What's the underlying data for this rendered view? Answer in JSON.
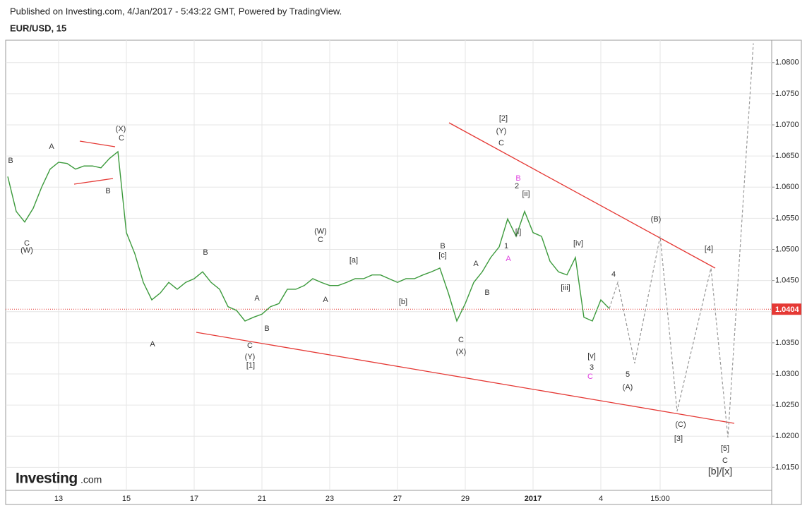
{
  "header": {
    "published": "Published on Investing.com, 4/Jan/2017 - 5:43:22 GMT, Powered by TradingView.",
    "symbol": "EUR/USD, 15"
  },
  "logo": {
    "brand": "Investing",
    "suffix": ".com"
  },
  "chart_data": {
    "type": "line",
    "categories": [
      null,
      null,
      null,
      null,
      null,
      null,
      "13",
      null,
      null,
      null,
      null,
      null,
      null,
      null,
      "15",
      null,
      null,
      null,
      null,
      null,
      null,
      null,
      "17",
      null,
      null,
      null,
      null,
      null,
      null,
      null,
      "21",
      null,
      null,
      null,
      null,
      null,
      null,
      null,
      "23",
      null,
      null,
      null,
      null,
      null,
      null,
      null,
      "27",
      null,
      null,
      null,
      null,
      null,
      null,
      null,
      "29",
      null,
      null,
      null,
      null,
      null,
      null,
      null,
      "2017",
      null,
      null,
      null,
      null,
      null,
      null,
      null,
      "4",
      null,
      null,
      null,
      null,
      null,
      null,
      "15:00",
      null,
      null,
      null,
      null,
      null,
      null,
      null,
      null,
      null,
      null,
      null
    ],
    "series": [
      {
        "color": "#3c9a3c",
        "values": [
          1.0617,
          1.0561,
          1.0544,
          1.0566,
          1.06,
          1.0629,
          1.064,
          1.0638,
          1.0629,
          1.0634,
          1.0634,
          1.0631,
          1.0646,
          1.0657,
          1.0527,
          1.0493,
          1.0447,
          1.0419,
          1.043,
          1.0447,
          1.0436,
          1.0447,
          1.0453,
          1.0464,
          1.0447,
          1.0436,
          1.0408,
          1.0402,
          1.0385,
          1.0391,
          1.0396,
          1.0408,
          1.0413,
          1.0436,
          1.0436,
          1.0442,
          1.0453,
          1.0447,
          1.0442,
          1.0442,
          1.0447,
          1.0453,
          1.0453,
          1.0459,
          1.0459,
          1.0453,
          1.0447,
          1.0453,
          1.0453,
          1.0459,
          1.0464,
          1.047,
          1.043,
          1.0385,
          1.0413,
          1.0447,
          1.0464,
          1.0487,
          1.0504,
          1.0549,
          1.0521,
          1.0561,
          1.0527,
          1.0521,
          1.0481,
          1.0464,
          1.0459,
          1.0487,
          1.0391,
          1.0385,
          1.0419,
          1.0405,
          null,
          null,
          null,
          null,
          null,
          null,
          null,
          null,
          null,
          null,
          null,
          null,
          null,
          null,
          null,
          null,
          null
        ]
      },
      {
        "color": "#999999",
        "dashed": true,
        "values": [
          null,
          null,
          null,
          null,
          null,
          null,
          null,
          null,
          null,
          null,
          null,
          null,
          null,
          null,
          null,
          null,
          null,
          null,
          null,
          null,
          null,
          null,
          null,
          null,
          null,
          null,
          null,
          null,
          null,
          null,
          null,
          null,
          null,
          null,
          null,
          null,
          null,
          null,
          null,
          null,
          null,
          null,
          null,
          null,
          null,
          null,
          null,
          null,
          null,
          null,
          null,
          null,
          null,
          null,
          null,
          null,
          null,
          null,
          null,
          null,
          null,
          null,
          null,
          null,
          null,
          null,
          null,
          null,
          null,
          null,
          null,
          1.0405,
          1.0447,
          1.0382,
          1.0317,
          1.0385,
          1.0453,
          1.0521,
          1.0381,
          1.024,
          1.0298,
          1.0355,
          1.0413,
          1.047,
          1.0334,
          1.0198,
          1.0409,
          1.062,
          1.0831
        ]
      }
    ],
    "ylim": [
      1.0113,
      1.0836
    ],
    "yticks": [
      {
        "value": 1.015,
        "label": "1.0150"
      },
      {
        "value": 1.02,
        "label": "1.0200"
      },
      {
        "value": 1.025,
        "label": "1.0250"
      },
      {
        "value": 1.03,
        "label": "1.0300"
      },
      {
        "value": 1.035,
        "label": "1.0350"
      },
      {
        "value": 1.04,
        "label": "1.0400"
      },
      {
        "value": 1.045,
        "label": "1.0450"
      },
      {
        "value": 1.05,
        "label": "1.0500"
      },
      {
        "value": 1.055,
        "label": "1.0550"
      },
      {
        "value": 1.06,
        "label": "1.0600"
      },
      {
        "value": 1.065,
        "label": "1.0650"
      },
      {
        "value": 1.07,
        "label": "1.0700"
      },
      {
        "value": 1.075,
        "label": "1.0750"
      },
      {
        "value": 1.08,
        "label": "1.0800"
      }
    ],
    "grid": true,
    "last_price": 1.0404,
    "last_price_color": "#e53935",
    "annotations": [
      {
        "text": "B"
      },
      {
        "text": "C"
      },
      {
        "text": "(W)"
      },
      {
        "text": "A"
      },
      {
        "text": "(X)"
      },
      {
        "text": "C"
      },
      {
        "text": "B"
      },
      {
        "text": "A"
      },
      {
        "text": "B"
      },
      {
        "text": "C"
      },
      {
        "text": "(Y)"
      },
      {
        "text": "[1]"
      },
      {
        "text": "A"
      },
      {
        "text": "B"
      },
      {
        "text": "(W)"
      },
      {
        "text": "C"
      },
      {
        "text": "A"
      },
      {
        "text": "[a]"
      },
      {
        "text": "[b]"
      },
      {
        "text": "B"
      },
      {
        "text": "[c]"
      },
      {
        "text": "C"
      },
      {
        "text": "(X)"
      },
      {
        "text": "A"
      },
      {
        "text": "B"
      },
      {
        "text": "[2]"
      },
      {
        "text": "(Y)"
      },
      {
        "text": "C"
      },
      {
        "text": "B",
        "color": "#e040e0"
      },
      {
        "text": "2"
      },
      {
        "text": "[ii]"
      },
      {
        "text": "[i]"
      },
      {
        "text": "1"
      },
      {
        "text": "A",
        "color": "#e040e0"
      },
      {
        "text": "[iv]"
      },
      {
        "text": "[iii]"
      },
      {
        "text": "[v]"
      },
      {
        "text": "3"
      },
      {
        "text": "C",
        "color": "#e040e0"
      },
      {
        "text": "4"
      },
      {
        "text": "5"
      },
      {
        "text": "(A)"
      },
      {
        "text": "(B)"
      },
      {
        "text": "[4]"
      },
      {
        "text": "(C)"
      },
      {
        "text": "[3]"
      },
      {
        "text": "[5]"
      },
      {
        "text": "C"
      },
      {
        "text": "[b]/[x]"
      }
    ]
  }
}
